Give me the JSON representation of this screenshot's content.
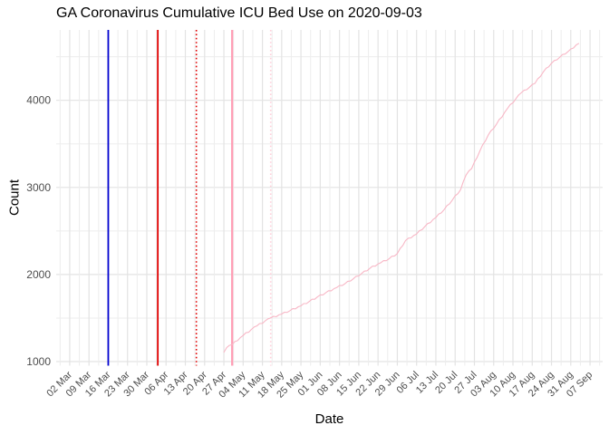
{
  "chart_data": {
    "type": "line",
    "title": "GA Coronavirus Cumulative ICU Bed Use on 2020-09-03",
    "xlabel": "Date",
    "ylabel": "Count",
    "legend": false,
    "grid": true,
    "x_domain": [
      "2020-02-27",
      "2020-09-10"
    ],
    "ylim": [
      950,
      4850
    ],
    "y_ticks": [
      1000,
      2000,
      3000,
      4000
    ],
    "y_minor_ticks": [
      1500,
      2500,
      3500,
      4500
    ],
    "x_ticks": [
      {
        "date": "2020-03-02",
        "label": "02 Mar"
      },
      {
        "date": "2020-03-09",
        "label": "09 Mar"
      },
      {
        "date": "2020-03-16",
        "label": "16 Mar"
      },
      {
        "date": "2020-03-23",
        "label": "23 Mar"
      },
      {
        "date": "2020-03-30",
        "label": "30 Mar"
      },
      {
        "date": "2020-04-06",
        "label": "06 Apr"
      },
      {
        "date": "2020-04-13",
        "label": "13 Apr"
      },
      {
        "date": "2020-04-20",
        "label": "20 Apr"
      },
      {
        "date": "2020-04-27",
        "label": "27 Apr"
      },
      {
        "date": "2020-05-04",
        "label": "04 May"
      },
      {
        "date": "2020-05-11",
        "label": "11 May"
      },
      {
        "date": "2020-05-18",
        "label": "18 May"
      },
      {
        "date": "2020-05-25",
        "label": "25 May"
      },
      {
        "date": "2020-06-01",
        "label": "01 Jun"
      },
      {
        "date": "2020-06-08",
        "label": "08 Jun"
      },
      {
        "date": "2020-06-15",
        "label": "15 Jun"
      },
      {
        "date": "2020-06-22",
        "label": "22 Jun"
      },
      {
        "date": "2020-06-29",
        "label": "29 Jun"
      },
      {
        "date": "2020-07-06",
        "label": "06 Jul"
      },
      {
        "date": "2020-07-13",
        "label": "13 Jul"
      },
      {
        "date": "2020-07-20",
        "label": "20 Jul"
      },
      {
        "date": "2020-07-27",
        "label": "27 Jul"
      },
      {
        "date": "2020-08-03",
        "label": "03 Aug"
      },
      {
        "date": "2020-08-10",
        "label": "10 Aug"
      },
      {
        "date": "2020-08-17",
        "label": "17 Aug"
      },
      {
        "date": "2020-08-24",
        "label": "24 Aug"
      },
      {
        "date": "2020-08-31",
        "label": "31 Aug"
      },
      {
        "date": "2020-09-07",
        "label": "07 Sep"
      }
    ],
    "colors": {
      "background": "#ffffff",
      "grid_major": "#e3e3e3",
      "grid_minor": "#ededed",
      "line": "#f8b7c6"
    },
    "vlines": [
      {
        "date": "2020-03-16",
        "color": "#0202cf",
        "style": "solid",
        "width": 1.8,
        "name": "blue-event-line"
      },
      {
        "date": "2020-04-03",
        "color": "#e10000",
        "style": "solid",
        "width": 1.8,
        "name": "red-event-line"
      },
      {
        "date": "2020-04-17",
        "color": "#e10000",
        "style": "dotted",
        "width": 1.6,
        "name": "red-dotted-event-line"
      },
      {
        "date": "2020-04-30",
        "color": "#ff9db4",
        "style": "solid",
        "width": 2.2,
        "name": "pink-event-line"
      },
      {
        "date": "2020-05-14",
        "color": "#ffcfda",
        "style": "dotted",
        "width": 1.6,
        "name": "pink-dotted-event-line"
      }
    ],
    "series": [
      {
        "name": "cumulative_icu_beds",
        "points": [
          [
            "2020-04-27",
            1105
          ],
          [
            "2020-04-28",
            1160
          ],
          [
            "2020-04-30",
            1195
          ],
          [
            "2020-05-04",
            1300
          ],
          [
            "2020-05-09",
            1410
          ],
          [
            "2020-05-14",
            1500
          ],
          [
            "2020-05-18",
            1545
          ],
          [
            "2020-05-21",
            1585
          ],
          [
            "2020-05-25",
            1640
          ],
          [
            "2020-05-28",
            1690
          ],
          [
            "2020-06-03",
            1790
          ],
          [
            "2020-06-07",
            1850
          ],
          [
            "2020-06-10",
            1895
          ],
          [
            "2020-06-13",
            1950
          ],
          [
            "2020-06-16",
            2010
          ],
          [
            "2020-06-19",
            2070
          ],
          [
            "2020-06-23",
            2135
          ],
          [
            "2020-06-26",
            2180
          ],
          [
            "2020-06-29",
            2240
          ],
          [
            "2020-07-02",
            2390
          ],
          [
            "2020-07-06",
            2465
          ],
          [
            "2020-07-09",
            2550
          ],
          [
            "2020-07-13",
            2655
          ],
          [
            "2020-07-16",
            2745
          ],
          [
            "2020-07-19",
            2855
          ],
          [
            "2020-07-22",
            2975
          ],
          [
            "2020-07-24",
            3145
          ],
          [
            "2020-07-26",
            3215
          ],
          [
            "2020-07-29",
            3420
          ],
          [
            "2020-08-01",
            3600
          ],
          [
            "2020-08-04",
            3725
          ],
          [
            "2020-08-08",
            3905
          ],
          [
            "2020-08-11",
            4015
          ],
          [
            "2020-08-13",
            4085
          ],
          [
            "2020-08-16",
            4150
          ],
          [
            "2020-08-18",
            4195
          ],
          [
            "2020-08-21",
            4325
          ],
          [
            "2020-08-24",
            4425
          ],
          [
            "2020-08-27",
            4495
          ],
          [
            "2020-08-30",
            4560
          ],
          [
            "2020-09-01",
            4600
          ],
          [
            "2020-09-03",
            4655
          ]
        ]
      }
    ]
  }
}
